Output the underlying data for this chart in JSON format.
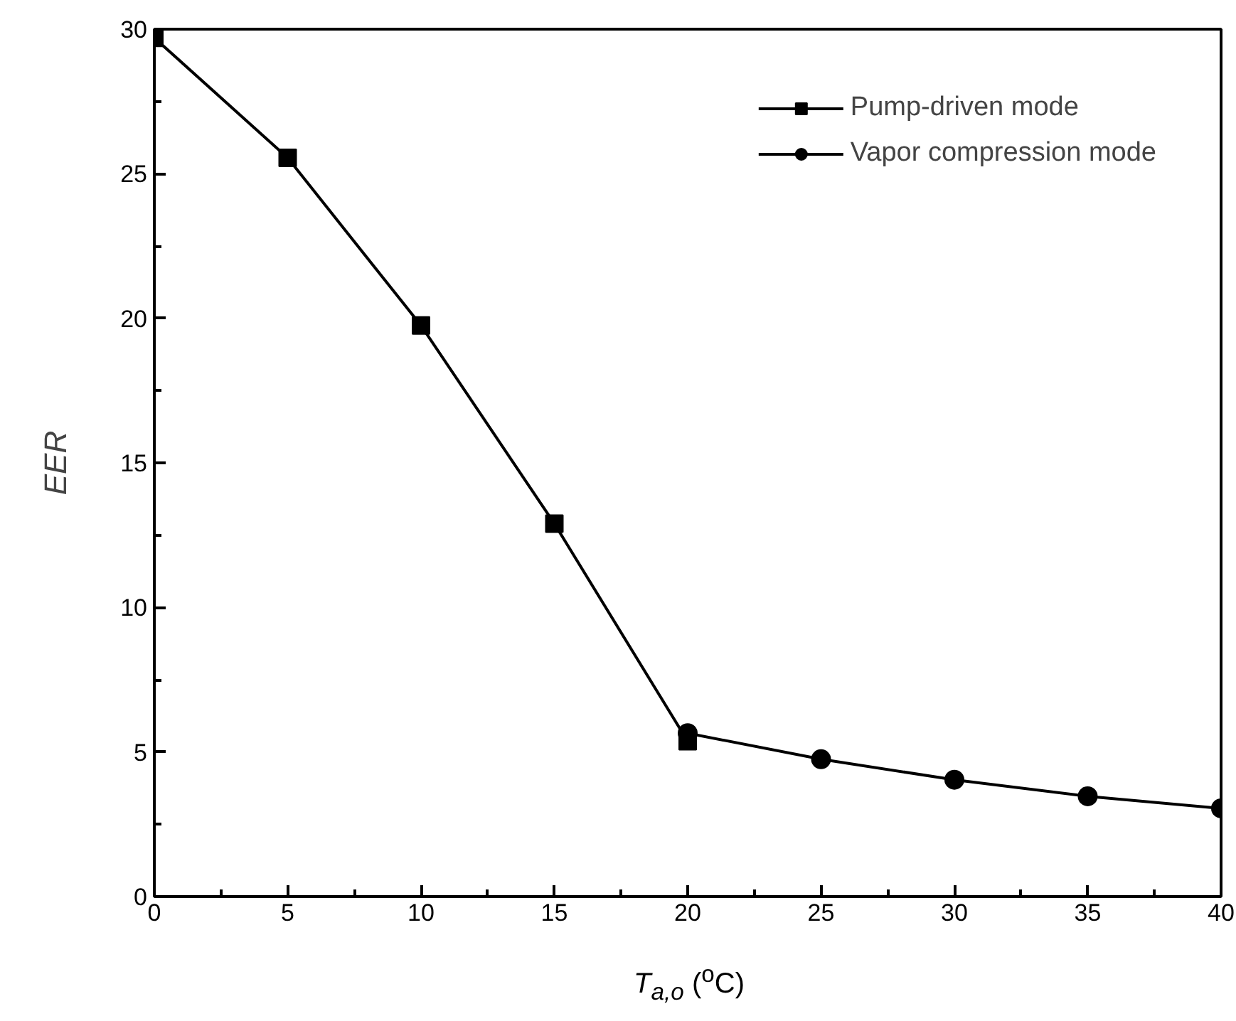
{
  "chart_data": {
    "type": "line",
    "xlabel": "T$_{a,o}$ ($^{o}$C)",
    "ylabel": "EER",
    "xlim": [
      0,
      40
    ],
    "xticks": [
      0,
      5,
      10,
      15,
      20,
      25,
      30,
      35,
      40
    ],
    "ylim": [
      0,
      30
    ],
    "yticks": [
      0,
      5,
      10,
      15,
      20,
      25,
      30
    ],
    "grid": false,
    "legend": "top right",
    "line_style": "solid",
    "series": [
      {
        "name": "Pump-driven mode",
        "color": "#000000",
        "marker": "square",
        "x": [
          0,
          5,
          10,
          15,
          20
        ],
        "values": [
          29.7,
          25.55,
          19.75,
          12.9,
          5.37
        ]
      },
      {
        "name": "Vapor compression mode",
        "color": "#000000",
        "marker": "circle",
        "x": [
          20,
          25,
          30,
          35,
          40
        ],
        "values": [
          5.65,
          4.75,
          4.04,
          3.47,
          3.05
        ]
      }
    ]
  }
}
